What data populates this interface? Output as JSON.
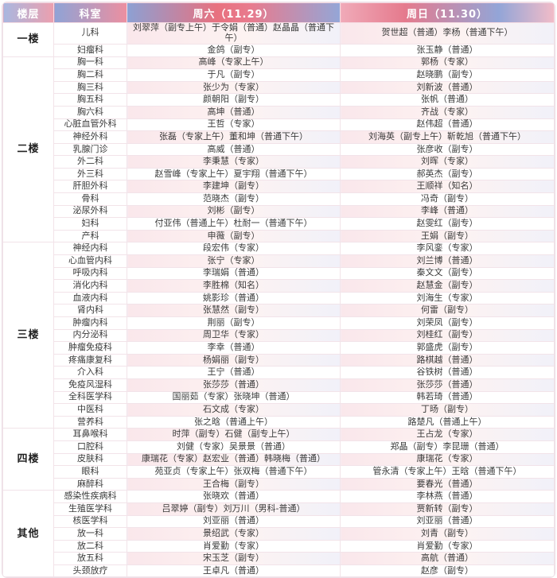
{
  "header": {
    "floor": "楼层",
    "dept": "科室",
    "sat": "周六（11.29）",
    "sun": "周日（11.30）"
  },
  "colors": {
    "header_pink": "#e8717f",
    "header_blue": "#8da0d3",
    "stripe_pink": "#fae7eb",
    "text": "#3a3a3a"
  },
  "floors": [
    {
      "name": "一楼",
      "rows": [
        {
          "dept": "儿科",
          "sat": "刘翠萍（副专上午）于令娟（普通）赵晶晶（普通下午）",
          "sun": "贺世超（普通）李杨（普通下午）"
        },
        {
          "dept": "妇瘤科",
          "sat": "金鸽（副专）",
          "sun": "张玉静（普通）"
        }
      ]
    },
    {
      "name": "二楼",
      "rows": [
        {
          "dept": "胸一科",
          "sat": "高峰（专家上午）",
          "sun": "郭杨（专家）"
        },
        {
          "dept": "胸二科",
          "sat": "于凡（副专）",
          "sun": "赵晓鹏（副专）"
        },
        {
          "dept": "胸三科",
          "sat": "张少为（专家）",
          "sun": "刘新波（普通）"
        },
        {
          "dept": "胸五科",
          "sat": "颜朝阳（副专）",
          "sun": "张帆（普通）"
        },
        {
          "dept": "胸六科",
          "sat": "高坤（普通）",
          "sun": "齐战（专家）"
        },
        {
          "dept": "心脏血管外科",
          "sat": "王哲（专家）",
          "sun": "赵伟超（普通）"
        },
        {
          "dept": "神经外科",
          "sat": "张磊（专家上午）董和坤（普通下午）",
          "sun": "刘海英（副专上午）靳乾旭（普通下午）"
        },
        {
          "dept": "乳腺门诊",
          "sat": "高威（普通）",
          "sun": "张彦收（副专）"
        },
        {
          "dept": "外二科",
          "sat": "李秉慧（专家）",
          "sun": "刘晖（专家）"
        },
        {
          "dept": "外三科",
          "sat": "赵雪峰（专家上午）夏宇翔（普通下午）",
          "sun": "郝英杰（副专）"
        },
        {
          "dept": "肝胆外科",
          "sat": "李建坤（副专）",
          "sun": "王顺祥（知名）"
        },
        {
          "dept": "骨科",
          "sat": "范晓杰（副专）",
          "sun": "冯奇（副专）"
        },
        {
          "dept": "泌尿外科",
          "sat": "刘彬（副专）",
          "sun": "李峰（普通）"
        },
        {
          "dept": "妇科",
          "sat": "付亚伟（普通上午）杜耐一（普通下午）",
          "sun": "赵雯红（副专）"
        },
        {
          "dept": "产科",
          "sat": "申薇（副专）",
          "sun": "王娟（副专）"
        }
      ]
    },
    {
      "name": "三楼",
      "rows": [
        {
          "dept": "神经内科",
          "sat": "段宏伟（专家）",
          "sun": "李风銮（专家）"
        },
        {
          "dept": "心血管内科",
          "sat": "张宁（专家）",
          "sun": "刘兰博（普通）"
        },
        {
          "dept": "呼吸内科",
          "sat": "李瑞娟（普通）",
          "sun": "秦文文（副专）"
        },
        {
          "dept": "消化内科",
          "sat": "李胜棉（知名）",
          "sun": "赵慧金（副专）"
        },
        {
          "dept": "血液内科",
          "sat": "姚影珍（普通）",
          "sun": "刘海生（专家）"
        },
        {
          "dept": "肾内科",
          "sat": "张慧然（副专）",
          "sun": "何雷（副专）"
        },
        {
          "dept": "肿瘤内科",
          "sat": "荆丽（副专）",
          "sun": "刘荣凤（副专）"
        },
        {
          "dept": "内分泌科",
          "sat": "周卫华（专家）",
          "sun": "刘桂红（副专）"
        },
        {
          "dept": "肿瘤免疫科",
          "sat": "李幸（普通）",
          "sun": "郭盛虎（副专）"
        },
        {
          "dept": "疼痛康复科",
          "sat": "杨娟丽（副专）",
          "sun": "路棋越（普通）"
        },
        {
          "dept": "介入科",
          "sat": "王宁（普通）",
          "sun": "谷铁树（普通）"
        },
        {
          "dept": "免疫风湿科",
          "sat": "张莎莎（普通）",
          "sun": "张莎莎（普通）"
        },
        {
          "dept": "全科医学科",
          "sat": "国丽茹（专家）张晓坤（普通）",
          "sun": "韩若琦（普通）"
        },
        {
          "dept": "中医科",
          "sat": "石文成（专家）",
          "sun": "丁旸（副专）"
        },
        {
          "dept": "营养科",
          "sat": "张之晗（普通上午）",
          "sun": "路楚凡（普通上午）"
        }
      ]
    },
    {
      "name": "四楼",
      "rows": [
        {
          "dept": "耳鼻喉科",
          "sat": "时萍（副专）石健（副专上午）",
          "sun": "王占龙（专家）"
        },
        {
          "dept": "口腔科",
          "sat": "刘健（专家）吴景景（普通）",
          "sun": "郑晶（副专）李昆珊（普通）"
        },
        {
          "dept": "皮肤科",
          "sat": "康瑞花（专家）赵宏业（普通）韩晓梅（普通）",
          "sun": "康瑞花（专家）"
        },
        {
          "dept": "眼科",
          "sat": "苑亚贞（专家上午）张双梅（普通下午）",
          "sun": "管永清（专家上午）王晗（普通下午）"
        },
        {
          "dept": "麻醉科",
          "sat": "王合梅（副专）",
          "sun": "要春光（普通）"
        }
      ]
    },
    {
      "name": "其他",
      "rows": [
        {
          "dept": "感染性疾病科",
          "sat": "张晓欢（普通）",
          "sun": "李林燕（普通）"
        },
        {
          "dept": "生殖医学科",
          "sat": "吕翠婷（副专）刘万川（男科-普通）",
          "sun": "贾新转（副专）"
        },
        {
          "dept": "核医学科",
          "sat": "刘亚丽（普通）",
          "sun": "刘亚丽（普通）"
        },
        {
          "dept": "放一科",
          "sat": "景绍武（专家）",
          "sun": "刘青（副专）"
        },
        {
          "dept": "放二科",
          "sat": "肖爱勤（专家）",
          "sun": "肖爱勤（专家）"
        },
        {
          "dept": "放五科",
          "sat": "宋玉芝（副专）",
          "sun": "高航（普通）"
        },
        {
          "dept": "头颈放疗",
          "sat": "王卓凡（普通）",
          "sun": "赵彦（副专）"
        }
      ]
    }
  ]
}
